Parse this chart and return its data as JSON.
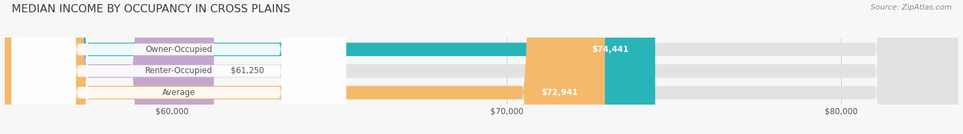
{
  "title": "MEDIAN INCOME BY OCCUPANCY IN CROSS PLAINS",
  "source": "Source: ZipAtlas.com",
  "categories": [
    "Owner-Occupied",
    "Renter-Occupied",
    "Average"
  ],
  "values": [
    74441,
    61250,
    72941
  ],
  "bar_colors": [
    "#29b5b8",
    "#c3a8ce",
    "#f5b96b"
  ],
  "value_labels": [
    "$74,441",
    "$61,250",
    "$72,941"
  ],
  "value_inside": [
    true,
    false,
    true
  ],
  "x_min": 55000,
  "x_max": 83500,
  "x_ticks": [
    60000,
    70000,
    80000
  ],
  "x_tick_labels": [
    "$60,000",
    "$70,000",
    "$80,000"
  ],
  "bar_height": 0.62,
  "background_color": "#f7f7f7",
  "bar_bg_color": "#e2e2e2",
  "pill_bg_color": "#ffffff",
  "title_fontsize": 11.5,
  "source_fontsize": 8,
  "label_fontsize": 8.5,
  "value_fontsize": 8.5,
  "tick_fontsize": 8.5,
  "grid_color": "#cccccc",
  "text_color": "#555555",
  "white": "#ffffff"
}
